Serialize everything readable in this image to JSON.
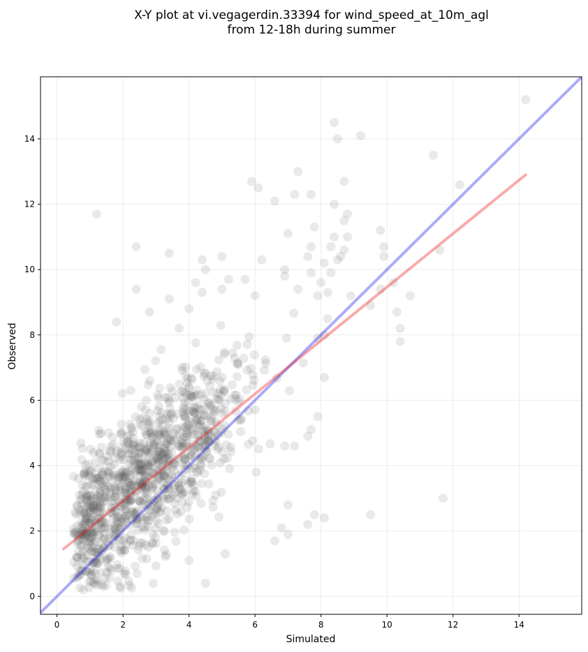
{
  "chart_data": {
    "type": "scatter",
    "title_line1": "X-Y plot at vi.vegagerdin.33394 for wind_speed_at_10m_agl",
    "title_line2": "from 12-18h during summer",
    "xlabel": "Simulated",
    "ylabel": "Observed",
    "xlim": [
      -0.5,
      15.9
    ],
    "ylim": [
      -0.55,
      15.9
    ],
    "xticks": [
      0,
      2,
      4,
      6,
      8,
      10,
      12,
      14
    ],
    "yticks": [
      0,
      2,
      4,
      6,
      8,
      10,
      12,
      14
    ],
    "grid": true,
    "point_color": "#555555",
    "identity_line": {
      "color": "#0000ee",
      "from": [
        -0.5,
        -0.5
      ],
      "to": [
        15.9,
        15.9
      ]
    },
    "fit_line": {
      "color": "#ee0000",
      "from": [
        0.2,
        1.45
      ],
      "to": [
        14.2,
        12.9
      ]
    },
    "outlier_points": [
      [
        14.2,
        15.2
      ],
      [
        8.4,
        14.5
      ],
      [
        9.2,
        14.1
      ],
      [
        8.5,
        14.0
      ],
      [
        11.4,
        13.5
      ],
      [
        7.3,
        13.0
      ],
      [
        5.9,
        12.7
      ],
      [
        8.7,
        12.7
      ],
      [
        6.1,
        12.5
      ],
      [
        12.2,
        12.6
      ],
      [
        7.2,
        12.3
      ],
      [
        7.7,
        12.3
      ],
      [
        6.6,
        12.1
      ],
      [
        8.4,
        12.0
      ],
      [
        1.2,
        11.7
      ],
      [
        8.8,
        11.7
      ],
      [
        8.7,
        11.5
      ],
      [
        7.8,
        11.3
      ],
      [
        7.0,
        11.1
      ],
      [
        8.4,
        11.0
      ],
      [
        8.8,
        11.0
      ],
      [
        9.8,
        11.2
      ],
      [
        2.4,
        10.7
      ],
      [
        7.7,
        10.7
      ],
      [
        8.3,
        10.7
      ],
      [
        8.7,
        10.6
      ],
      [
        8.6,
        10.4
      ],
      [
        9.9,
        10.7
      ],
      [
        11.6,
        10.6
      ],
      [
        3.4,
        10.5
      ],
      [
        4.4,
        10.3
      ],
      [
        5.0,
        10.4
      ],
      [
        6.2,
        10.3
      ],
      [
        7.6,
        10.4
      ],
      [
        8.5,
        10.3
      ],
      [
        9.9,
        10.4
      ],
      [
        4.5,
        10.0
      ],
      [
        6.9,
        10.0
      ],
      [
        6.9,
        9.8
      ],
      [
        7.7,
        9.9
      ],
      [
        7.3,
        9.4
      ],
      [
        8.0,
        9.6
      ],
      [
        8.1,
        10.2
      ],
      [
        8.3,
        9.9
      ],
      [
        9.8,
        9.4
      ],
      [
        10.2,
        9.6
      ],
      [
        10.7,
        9.2
      ],
      [
        8.9,
        9.2
      ],
      [
        2.4,
        9.4
      ],
      [
        4.2,
        9.6
      ],
      [
        4.4,
        9.3
      ],
      [
        5.0,
        9.4
      ],
      [
        5.2,
        9.7
      ],
      [
        5.7,
        9.7
      ],
      [
        6.0,
        9.2
      ],
      [
        7.9,
        9.2
      ],
      [
        8.2,
        9.3
      ],
      [
        9.5,
        8.9
      ],
      [
        10.3,
        8.7
      ],
      [
        10.4,
        8.2
      ],
      [
        10.4,
        7.8
      ],
      [
        8.1,
        8.0
      ],
      [
        8.2,
        8.5
      ],
      [
        7.9,
        7.9
      ],
      [
        1.8,
        8.4
      ],
      [
        3.4,
        9.1
      ],
      [
        2.8,
        8.7
      ],
      [
        3.7,
        8.2
      ],
      [
        4.0,
        8.8
      ],
      [
        8.1,
        6.7
      ],
      [
        7.9,
        5.5
      ],
      [
        7.7,
        5.1
      ],
      [
        7.6,
        4.9
      ],
      [
        7.2,
        4.6
      ],
      [
        6.9,
        4.6
      ],
      [
        11.7,
        3.0
      ],
      [
        9.5,
        2.5
      ],
      [
        8.1,
        2.4
      ],
      [
        7.8,
        2.5
      ],
      [
        7.6,
        2.2
      ],
      [
        7.0,
        2.8
      ],
      [
        6.8,
        2.1
      ],
      [
        7.0,
        1.9
      ],
      [
        6.6,
        1.7
      ],
      [
        4.5,
        0.4
      ],
      [
        4.0,
        1.1
      ],
      [
        5.1,
        1.3
      ],
      [
        1.9,
        0.3
      ],
      [
        1.4,
        0.3
      ],
      [
        0.8,
        0.2
      ]
    ]
  }
}
